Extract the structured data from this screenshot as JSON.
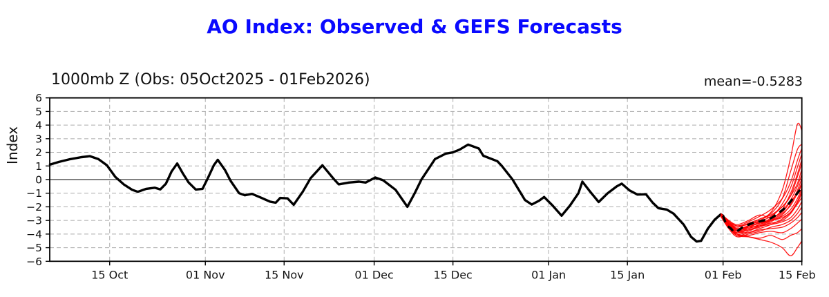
{
  "page": {
    "title_color": "#0a0aff",
    "background": "#ffffff"
  },
  "chart_data": {
    "type": "line",
    "title": "AO Index: Observed & GEFS Forecasts",
    "subtitle": "1000mb Z (Obs: 05Oct2025 - 01Feb2026)",
    "annotation": "mean=-0.5283",
    "ylabel": "Index",
    "ylim": [
      -6,
      6
    ],
    "x_unit": "days since 05Oct2025",
    "xlim": [
      -0.65,
      133
    ],
    "grid": true,
    "colors": {
      "observed": "#000000",
      "ensemble": "#ff0000",
      "ensemble_mean": "#000000",
      "gridline": "#ababab",
      "zero_line": "#000000",
      "spine": "#000000"
    },
    "x_ticks": [
      {
        "d": 10,
        "label": "15 Oct"
      },
      {
        "d": 27,
        "label": "01 Nov"
      },
      {
        "d": 41,
        "label": "15 Nov"
      },
      {
        "d": 57,
        "label": "01 Dec"
      },
      {
        "d": 71,
        "label": "15 Dec"
      },
      {
        "d": 88,
        "label": "01 Jan"
      },
      {
        "d": 102,
        "label": "15 Jan"
      },
      {
        "d": 119,
        "label": "01 Feb"
      },
      {
        "d": 133,
        "label": "15 Feb"
      }
    ],
    "y_ticks": [
      {
        "v": 6,
        "label": "6"
      },
      {
        "v": 5,
        "label": "5"
      },
      {
        "v": 4,
        "label": "4"
      },
      {
        "v": 3,
        "label": "3"
      },
      {
        "v": 2,
        "label": "2"
      },
      {
        "v": 1,
        "label": "1"
      },
      {
        "v": 0,
        "label": "0"
      },
      {
        "v": -1,
        "label": "−1"
      },
      {
        "v": -2,
        "label": "−2"
      },
      {
        "v": -3,
        "label": "−3"
      },
      {
        "v": -4,
        "label": "−4"
      },
      {
        "v": -5,
        "label": "−5"
      },
      {
        "v": -6,
        "label": "−6"
      }
    ],
    "observed": {
      "name": "Observed AO index",
      "points": [
        [
          -0.6,
          1.1
        ],
        [
          1,
          1.3
        ],
        [
          3,
          1.5
        ],
        [
          5,
          1.65
        ],
        [
          6.5,
          1.72
        ],
        [
          8,
          1.5
        ],
        [
          9.5,
          1.05
        ],
        [
          11,
          0.2
        ],
        [
          12.5,
          -0.35
        ],
        [
          14,
          -0.75
        ],
        [
          15,
          -0.9
        ],
        [
          16.5,
          -0.68
        ],
        [
          18,
          -0.6
        ],
        [
          19,
          -0.72
        ],
        [
          20,
          -0.3
        ],
        [
          21,
          0.6
        ],
        [
          22,
          1.18
        ],
        [
          23,
          0.45
        ],
        [
          24,
          -0.2
        ],
        [
          25.3,
          -0.73
        ],
        [
          26.5,
          -0.68
        ],
        [
          27.5,
          0.15
        ],
        [
          28.5,
          1.05
        ],
        [
          29.2,
          1.45
        ],
        [
          30.5,
          0.7
        ],
        [
          31.5,
          -0.1
        ],
        [
          33,
          -1.0
        ],
        [
          34,
          -1.15
        ],
        [
          35.3,
          -1.05
        ],
        [
          37,
          -1.35
        ],
        [
          38.5,
          -1.62
        ],
        [
          39.5,
          -1.7
        ],
        [
          40.3,
          -1.35
        ],
        [
          41.6,
          -1.38
        ],
        [
          42.7,
          -1.85
        ],
        [
          44.3,
          -0.9
        ],
        [
          45.7,
          0.1
        ],
        [
          47.8,
          1.05
        ],
        [
          49.8,
          0.05
        ],
        [
          50.7,
          -0.35
        ],
        [
          52.5,
          -0.22
        ],
        [
          54.3,
          -0.15
        ],
        [
          55.5,
          -0.22
        ],
        [
          57.2,
          0.15
        ],
        [
          58.6,
          -0.05
        ],
        [
          60.8,
          -0.75
        ],
        [
          62.9,
          -2.0
        ],
        [
          64.2,
          -1.0
        ],
        [
          65.4,
          0.0
        ],
        [
          67.8,
          1.5
        ],
        [
          69.7,
          1.9
        ],
        [
          71,
          2.0
        ],
        [
          72.2,
          2.2
        ],
        [
          73.7,
          2.57
        ],
        [
          75.6,
          2.28
        ],
        [
          76.4,
          1.75
        ],
        [
          78.9,
          1.35
        ],
        [
          79.7,
          1.0
        ],
        [
          81.6,
          0.0
        ],
        [
          83.8,
          -1.5
        ],
        [
          85,
          -1.83
        ],
        [
          86.3,
          -1.55
        ],
        [
          87.2,
          -1.28
        ],
        [
          88.7,
          -1.9
        ],
        [
          90.3,
          -2.65
        ],
        [
          91.8,
          -1.9
        ],
        [
          93.3,
          -1.0
        ],
        [
          94,
          -0.15
        ],
        [
          95.4,
          -0.9
        ],
        [
          96.9,
          -1.65
        ],
        [
          98.5,
          -1.0
        ],
        [
          100.1,
          -0.5
        ],
        [
          101,
          -0.3
        ],
        [
          102.4,
          -0.8
        ],
        [
          103.8,
          -1.1
        ],
        [
          105.3,
          -1.08
        ],
        [
          106.5,
          -1.7
        ],
        [
          107.5,
          -2.1
        ],
        [
          109,
          -2.2
        ],
        [
          110.2,
          -2.5
        ],
        [
          112,
          -3.3
        ],
        [
          113.3,
          -4.2
        ],
        [
          114.3,
          -4.55
        ],
        [
          115.1,
          -4.5
        ],
        [
          116.3,
          -3.6
        ],
        [
          117.5,
          -2.95
        ],
        [
          118.6,
          -2.55
        ],
        [
          119,
          -2.65
        ]
      ]
    },
    "ensemble_mean": {
      "name": "GEFS ensemble mean",
      "points": [
        [
          119,
          -2.65
        ],
        [
          119.6,
          -3.3
        ],
        [
          120.4,
          -3.6
        ],
        [
          121,
          -3.85
        ],
        [
          121.8,
          -3.7
        ],
        [
          122.5,
          -3.5
        ],
        [
          123.3,
          -3.35
        ],
        [
          124.2,
          -3.2
        ],
        [
          125.2,
          -3.1
        ],
        [
          126.2,
          -3.0
        ],
        [
          127.2,
          -2.9
        ],
        [
          128.2,
          -2.65
        ],
        [
          129.2,
          -2.35
        ],
        [
          130.2,
          -2.0
        ],
        [
          131.2,
          -1.5
        ],
        [
          132.2,
          -1.0
        ],
        [
          133,
          -0.55
        ]
      ]
    },
    "ensemble_members": {
      "name": "GEFS ensemble members",
      "x": [
        118.6,
        120,
        121.5,
        123.5,
        125.5,
        127.5,
        129.5,
        131,
        132.2,
        133
      ],
      "values": [
        [
          -2.6,
          -3.1,
          -3.5,
          -3.2,
          -2.9,
          -2.4,
          -0.8,
          1.6,
          4.05,
          3.6
        ],
        [
          -2.6,
          -3.3,
          -3.7,
          -3.4,
          -3.0,
          -2.5,
          -1.4,
          0.6,
          2.2,
          2.6
        ],
        [
          -2.5,
          -3.0,
          -3.4,
          -3.1,
          -2.7,
          -2.2,
          -1.4,
          -0.2,
          1.4,
          2.3
        ],
        [
          -2.6,
          -3.4,
          -3.9,
          -3.6,
          -3.3,
          -2.8,
          -1.8,
          -0.6,
          0.9,
          1.9
        ],
        [
          -2.7,
          -3.5,
          -4.0,
          -3.8,
          -3.4,
          -3.0,
          -2.2,
          -1.0,
          0.4,
          1.5
        ],
        [
          -2.6,
          -3.2,
          -3.6,
          -3.5,
          -3.1,
          -2.7,
          -2.0,
          -1.2,
          0.2,
          1.2
        ],
        [
          -2.5,
          -3.1,
          -3.6,
          -3.4,
          -2.9,
          -2.6,
          -2.0,
          -1.2,
          -0.3,
          0.8
        ],
        [
          -2.6,
          -3.3,
          -3.8,
          -3.5,
          -3.2,
          -2.9,
          -2.3,
          -1.5,
          -0.5,
          0.4
        ],
        [
          -2.7,
          -3.4,
          -3.9,
          -3.7,
          -3.5,
          -3.1,
          -2.6,
          -1.8,
          -0.8,
          0.1
        ],
        [
          -2.6,
          -3.2,
          -3.7,
          -3.6,
          -3.3,
          -3.0,
          -2.5,
          -1.9,
          -1.0,
          -0.2
        ],
        [
          -2.5,
          -3.0,
          -3.3,
          -3.0,
          -2.6,
          -2.8,
          -2.4,
          -1.6,
          -1.0,
          -0.4
        ],
        [
          -2.6,
          -3.3,
          -3.6,
          -3.4,
          -3.2,
          -3.0,
          -2.7,
          -2.2,
          -1.4,
          -0.6
        ],
        [
          -2.7,
          -3.5,
          -4.1,
          -3.9,
          -3.6,
          -3.3,
          -2.9,
          -2.4,
          -1.6,
          -0.8
        ],
        [
          -2.6,
          -3.4,
          -3.8,
          -3.7,
          -3.4,
          -3.2,
          -3.0,
          -2.5,
          -1.7,
          -1.0
        ],
        [
          -2.5,
          -3.1,
          -3.4,
          -3.3,
          -3.1,
          -3.0,
          -2.8,
          -2.4,
          -1.8,
          -1.3
        ],
        [
          -2.6,
          -3.2,
          -3.6,
          -3.5,
          -3.4,
          -3.3,
          -3.1,
          -2.8,
          -2.2,
          -1.6
        ],
        [
          -2.7,
          -3.6,
          -4.2,
          -4.0,
          -3.8,
          -3.5,
          -3.3,
          -3.0,
          -2.5,
          -2.0
        ],
        [
          -2.6,
          -3.3,
          -3.8,
          -3.9,
          -3.7,
          -3.6,
          -3.5,
          -3.2,
          -2.8,
          -2.4
        ],
        [
          -2.6,
          -3.4,
          -4.0,
          -4.1,
          -3.9,
          -3.8,
          -3.9,
          -3.6,
          -3.2,
          -2.9
        ],
        [
          -2.7,
          -3.5,
          -4.1,
          -4.2,
          -4.3,
          -4.1,
          -4.4,
          -4.1,
          -3.9,
          -3.6
        ],
        [
          -2.6,
          -3.4,
          -4.0,
          -4.2,
          -4.4,
          -4.6,
          -5.0,
          -5.6,
          -5.0,
          -4.5
        ]
      ]
    }
  }
}
